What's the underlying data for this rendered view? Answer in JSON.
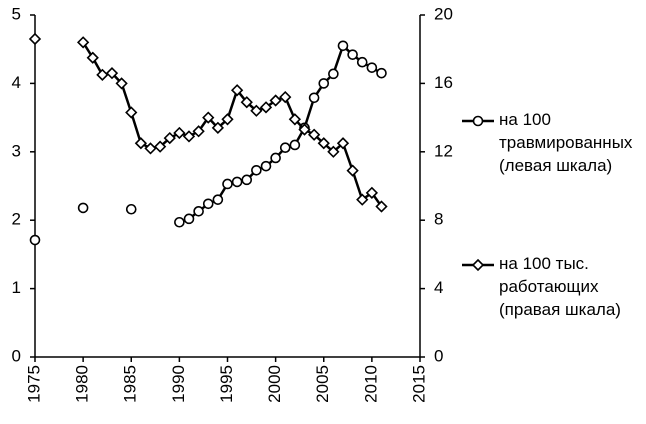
{
  "chart_data": {
    "type": "line",
    "x": [
      1975,
      1976,
      1977,
      1978,
      1979,
      1980,
      1981,
      1982,
      1983,
      1984,
      1985,
      1986,
      1987,
      1988,
      1989,
      1990,
      1991,
      1992,
      1993,
      1994,
      1995,
      1996,
      1997,
      1998,
      1999,
      2000,
      2001,
      2002,
      2003,
      2004,
      2005,
      2006,
      2007,
      2008,
      2009,
      2010,
      2011
    ],
    "series": [
      {
        "name": "на 100\nтравмированных\n(левая шкала)",
        "color": "#000000",
        "marker": "circle",
        "axis": "y",
        "values": [
          1.71,
          null,
          null,
          null,
          null,
          2.18,
          null,
          null,
          null,
          null,
          2.16,
          null,
          null,
          null,
          null,
          1.97,
          2.02,
          2.13,
          2.24,
          2.3,
          2.53,
          2.56,
          2.59,
          2.73,
          2.79,
          2.91,
          3.06,
          3.1,
          3.35,
          3.79,
          4.0,
          4.14,
          4.55,
          4.42,
          4.31,
          4.23,
          4.15
        ]
      },
      {
        "name": "на 100 тыс.\nработающих\n(правая шкала)",
        "color": "#000000",
        "marker": "diamond",
        "axis": "y2",
        "values": [
          18.6,
          null,
          null,
          null,
          null,
          18.4,
          17.5,
          16.5,
          16.6,
          16.0,
          14.3,
          12.5,
          12.2,
          12.3,
          12.8,
          13.1,
          12.9,
          13.2,
          14.0,
          13.4,
          13.9,
          15.6,
          14.9,
          14.4,
          14.6,
          15.0,
          15.2,
          13.9,
          13.3,
          13.0,
          12.5,
          12.0,
          12.5,
          10.9,
          9.2,
          9.6,
          8.8
        ]
      }
    ],
    "xlim": [
      1975,
      2015
    ],
    "xticks": [
      1975,
      1980,
      1985,
      1990,
      1995,
      2000,
      2005,
      2010,
      2015
    ],
    "ylim": [
      0,
      5
    ],
    "yticks": [
      0,
      1,
      2,
      3,
      4,
      5
    ],
    "y2lim": [
      0,
      20
    ],
    "y2ticks": [
      0,
      4,
      8,
      12,
      16,
      20
    ],
    "grid": false,
    "legend": "right"
  }
}
